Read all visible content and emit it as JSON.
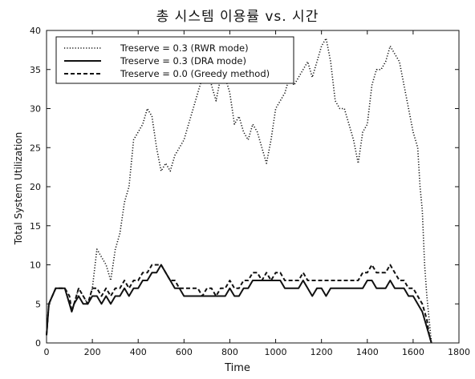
{
  "chart_data": {
    "type": "line",
    "title": "총 시스템 이용률 vs. 시간",
    "xlabel": "Time",
    "ylabel": "Total System Utilization",
    "xlim": [
      0,
      1800
    ],
    "ylim": [
      0,
      40
    ],
    "xticks": [
      0,
      200,
      400,
      600,
      800,
      1000,
      1200,
      1400,
      1600,
      1800
    ],
    "yticks": [
      0,
      5,
      10,
      15,
      20,
      25,
      30,
      35,
      40
    ],
    "grid": false,
    "legend_position": "top-left",
    "series": [
      {
        "name": "Treserve = 0.3 (RWR mode)",
        "style": "dotted",
        "color": "#111111",
        "x": [
          0,
          10,
          40,
          80,
          100,
          110,
          120,
          140,
          160,
          180,
          200,
          220,
          240,
          260,
          280,
          300,
          320,
          340,
          360,
          380,
          400,
          420,
          440,
          460,
          480,
          500,
          520,
          540,
          560,
          580,
          600,
          620,
          640,
          660,
          680,
          700,
          720,
          740,
          760,
          780,
          800,
          820,
          840,
          860,
          880,
          900,
          920,
          940,
          960,
          980,
          1000,
          1020,
          1040,
          1060,
          1080,
          1100,
          1120,
          1140,
          1160,
          1180,
          1200,
          1220,
          1240,
          1260,
          1280,
          1300,
          1320,
          1340,
          1360,
          1380,
          1400,
          1420,
          1440,
          1460,
          1480,
          1500,
          1520,
          1540,
          1560,
          1580,
          1600,
          1620,
          1630,
          1640,
          1650,
          1660,
          1680
        ],
        "y": [
          1,
          5,
          7,
          7,
          5,
          4,
          5,
          7,
          6,
          5,
          7,
          12,
          11,
          10,
          8,
          12,
          14,
          18,
          20,
          26,
          27,
          28,
          30,
          29,
          25,
          22,
          23,
          22,
          24,
          25,
          26,
          28,
          30,
          32,
          34,
          36,
          33,
          31,
          34,
          34,
          32,
          28,
          29,
          27,
          26,
          28,
          27,
          25,
          23,
          26,
          30,
          31,
          32,
          34,
          33,
          34,
          35,
          36,
          34,
          36,
          38,
          39,
          36,
          31,
          30,
          30,
          28,
          26,
          23,
          27,
          28,
          33,
          35,
          35,
          36,
          38,
          37,
          36,
          33,
          30,
          27,
          25,
          20,
          17,
          10,
          6,
          0
        ]
      },
      {
        "name": "Treserve = 0.3 (DRA mode)",
        "style": "solid",
        "color": "#111111",
        "x": [
          0,
          10,
          40,
          80,
          100,
          110,
          120,
          140,
          160,
          180,
          200,
          220,
          240,
          260,
          280,
          300,
          320,
          340,
          360,
          380,
          400,
          420,
          440,
          460,
          480,
          500,
          520,
          540,
          560,
          580,
          600,
          620,
          640,
          660,
          680,
          700,
          720,
          740,
          760,
          780,
          800,
          820,
          840,
          860,
          880,
          900,
          920,
          940,
          960,
          980,
          1000,
          1020,
          1040,
          1060,
          1080,
          1100,
          1120,
          1140,
          1160,
          1180,
          1200,
          1220,
          1240,
          1260,
          1280,
          1300,
          1320,
          1340,
          1360,
          1380,
          1400,
          1420,
          1440,
          1460,
          1480,
          1500,
          1520,
          1540,
          1560,
          1580,
          1600,
          1620,
          1640,
          1650,
          1660,
          1670,
          1680
        ],
        "y": [
          1,
          5,
          7,
          7,
          5,
          4,
          5,
          6,
          5,
          5,
          6,
          6,
          5,
          6,
          5,
          6,
          6,
          7,
          6,
          7,
          7,
          8,
          8,
          9,
          9,
          10,
          9,
          8,
          7,
          7,
          6,
          6,
          6,
          6,
          6,
          6,
          6,
          6,
          6,
          6,
          7,
          6,
          6,
          7,
          7,
          8,
          8,
          8,
          8,
          8,
          8,
          8,
          7,
          7,
          7,
          7,
          8,
          7,
          6,
          7,
          7,
          6,
          7,
          7,
          7,
          7,
          7,
          7,
          7,
          7,
          8,
          8,
          7,
          7,
          7,
          8,
          7,
          7,
          7,
          6,
          6,
          5,
          4,
          3,
          2,
          1,
          0
        ]
      },
      {
        "name": "Treserve = 0.0 (Greedy method)",
        "style": "dashed",
        "color": "#111111",
        "x": [
          0,
          10,
          40,
          80,
          100,
          110,
          120,
          140,
          160,
          180,
          200,
          220,
          240,
          260,
          280,
          300,
          320,
          340,
          360,
          380,
          400,
          420,
          440,
          460,
          480,
          500,
          520,
          540,
          560,
          580,
          600,
          620,
          640,
          660,
          680,
          700,
          720,
          740,
          760,
          780,
          800,
          820,
          840,
          860,
          880,
          900,
          920,
          940,
          960,
          980,
          1000,
          1020,
          1040,
          1060,
          1080,
          1100,
          1120,
          1140,
          1160,
          1180,
          1200,
          1220,
          1240,
          1260,
          1280,
          1300,
          1320,
          1340,
          1360,
          1380,
          1400,
          1420,
          1440,
          1460,
          1480,
          1500,
          1520,
          1540,
          1560,
          1580,
          1600,
          1620,
          1640,
          1650,
          1660,
          1670,
          1680
        ],
        "y": [
          1,
          5,
          7,
          7,
          6,
          4,
          5,
          7,
          6,
          5,
          7,
          7,
          6,
          7,
          6,
          7,
          7,
          8,
          7,
          8,
          8,
          9,
          9,
          10,
          10,
          10,
          9,
          8,
          8,
          7,
          7,
          7,
          7,
          7,
          6,
          7,
          7,
          6,
          7,
          7,
          8,
          7,
          7,
          8,
          8,
          9,
          9,
          8,
          9,
          8,
          9,
          9,
          8,
          8,
          8,
          8,
          9,
          8,
          8,
          8,
          8,
          8,
          8,
          8,
          8,
          8,
          8,
          8,
          8,
          9,
          9,
          10,
          9,
          9,
          9,
          10,
          9,
          8,
          8,
          7,
          7,
          6,
          5,
          4,
          3,
          1,
          0
        ]
      }
    ]
  }
}
